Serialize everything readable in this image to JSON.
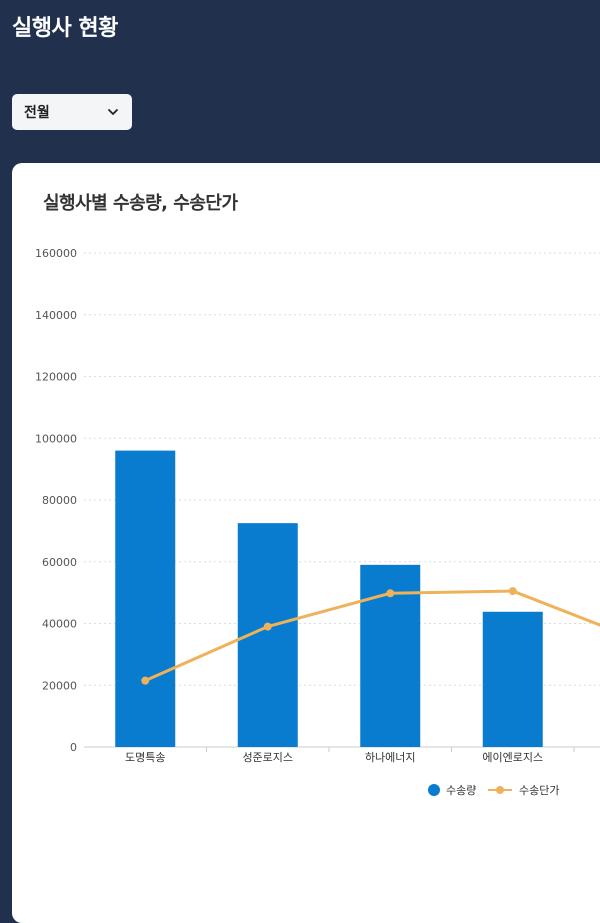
{
  "header": {
    "title": "실행사 현황"
  },
  "filter": {
    "selected": "전월"
  },
  "card": {
    "title": "실행사별 수송량, 수송단가"
  },
  "colors": {
    "bar": "#0a7ccf",
    "line": "#eeb25a",
    "background": "#21304c"
  },
  "chart_data": {
    "type": "bar",
    "title": "실행사별 수송량, 수송단가",
    "xlabel": "",
    "ylabel": "",
    "ylim": [
      0,
      160000
    ],
    "yticks": [
      0,
      20000,
      40000,
      60000,
      80000,
      100000,
      120000,
      140000,
      160000
    ],
    "grid": true,
    "legend_position": "bottom-right",
    "categories": [
      "도명특송",
      "성준로지스",
      "하나에너지",
      "에이엔로지스"
    ],
    "series": [
      {
        "name": "수송량",
        "type": "bar",
        "values": [
          96000,
          72500,
          59000,
          43800
        ]
      },
      {
        "name": "수송단가",
        "type": "line",
        "values": [
          21500,
          39000,
          49800,
          50500
        ]
      }
    ]
  }
}
